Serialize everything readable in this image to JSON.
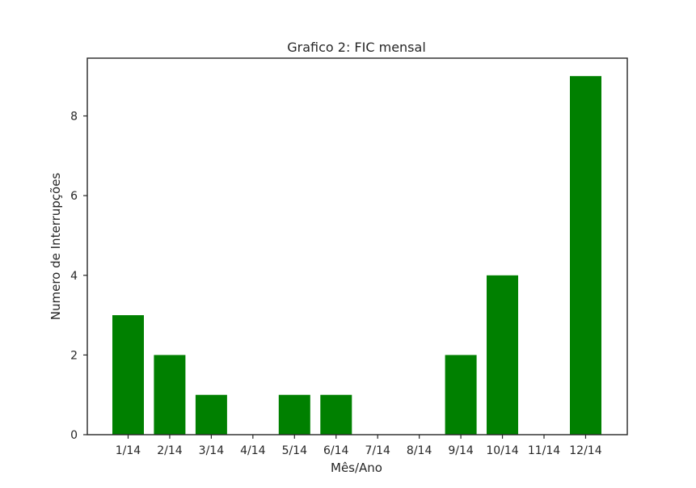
{
  "chart_data": {
    "type": "bar",
    "title": "Grafico 2: FIC mensal",
    "xlabel": "Mês/Ano",
    "ylabel": "Numero de Interrupções",
    "categories": [
      "1/14",
      "2/14",
      "3/14",
      "4/14",
      "5/14",
      "6/14",
      "7/14",
      "8/14",
      "9/14",
      "10/14",
      "11/14",
      "12/14"
    ],
    "values": [
      3,
      2,
      1,
      0,
      1,
      1,
      0,
      0,
      2,
      4,
      0,
      9
    ],
    "ylim": [
      0,
      9.45
    ],
    "yticks": [
      "0",
      "2",
      "4",
      "6",
      "8"
    ],
    "bar_color": "#008000",
    "grid": false,
    "legend": "none"
  }
}
